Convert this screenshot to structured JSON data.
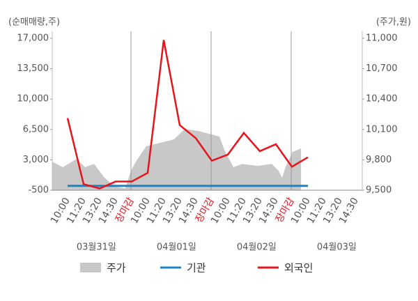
{
  "chart_data": {
    "type": "line",
    "y_label": "(순매매량,주)",
    "y2_label": "(주가,원)",
    "categories": [
      "10:00",
      "11:20",
      "13:20",
      "14:30",
      "장마감",
      "10:00",
      "11:20",
      "13:20",
      "14:30",
      "장마감",
      "10:00",
      "11:20",
      "13:20",
      "14:30",
      "장마감",
      "10:00",
      "11:20",
      "13:20",
      "14:30"
    ],
    "dates": [
      "03월31일",
      "04월01일",
      "04월02일",
      "04월03일"
    ],
    "ylim": [
      -500,
      17000
    ],
    "yticks": [
      -500,
      {
        "value": 3000,
        "label": "3,000"
      },
      {
        "value": 6500,
        "label": "6,500"
      },
      {
        "value": 10000,
        "label": "10,000"
      },
      {
        "value": 13500,
        "label": "13,500"
      },
      {
        "value": 17000,
        "label": "17,000"
      }
    ],
    "y2lim": [
      9500,
      11000
    ],
    "y2ticks": [
      {
        "value": 9500,
        "label": "9,500"
      },
      {
        "value": 9800,
        "label": "9,800"
      },
      {
        "value": 10100,
        "label": "10,100"
      },
      {
        "value": 10400,
        "label": "10,400"
      },
      {
        "value": 10700,
        "label": "10,700"
      },
      {
        "value": 11000,
        "label": "11,000"
      }
    ],
    "series": [
      {
        "name": "주가",
        "color": "#c8c8c8",
        "axis": "y2",
        "kind": "area",
        "x": [
          -0.96,
          -0.3,
          0.57,
          1.09,
          1.65,
          2.3,
          2.96,
          3.6,
          3.96,
          4.26,
          4.91,
          5.78,
          6.65,
          7.3,
          8.17,
          8.83,
          9.48,
          9.78,
          10.35,
          10.9,
          11.87,
          12.74,
          13.17,
          13.39,
          13.6,
          14.04,
          14.57
        ],
        "values": [
          9782,
          9727,
          9810,
          9727,
          9760,
          9624,
          9534,
          9520,
          9693,
          9782,
          9934,
          9968,
          10002,
          10105,
          10085,
          10057,
          10030,
          9900,
          9727,
          9760,
          9740,
          9760,
          9693,
          9624,
          9727,
          9878,
          9913
        ]
      },
      {
        "name": "기관",
        "color": "#1a84c8",
        "kind": "line",
        "values": [
          0,
          0,
          0,
          0,
          0,
          0,
          0,
          0,
          0,
          0,
          0,
          0,
          0,
          0,
          0,
          0,
          null,
          null,
          null
        ]
      },
      {
        "name": "외국인",
        "color": "#e8141c",
        "kind": "line",
        "values": [
          7800,
          200,
          -300,
          500,
          500,
          1500,
          16800,
          7000,
          5500,
          2900,
          3600,
          6100,
          4000,
          4800,
          2200,
          3300,
          null,
          null,
          null
        ]
      }
    ]
  }
}
